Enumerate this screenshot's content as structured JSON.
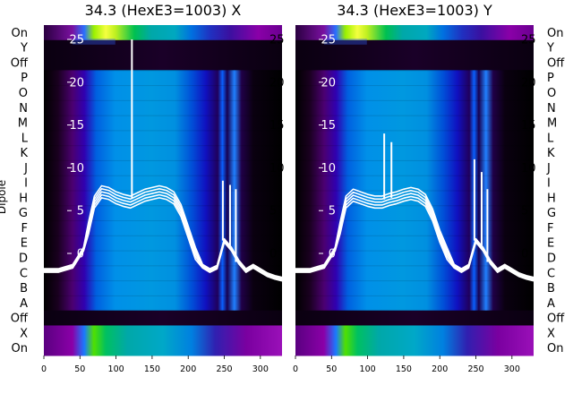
{
  "chart_data": [
    {
      "type": "heatmap",
      "title": "34.3 (HexE3=1003) X",
      "ylabel": "Dipole",
      "xlabel": "",
      "xlim": [
        0,
        330
      ],
      "x_ticks": [
        0,
        50,
        100,
        150,
        200,
        250,
        300
      ],
      "row_labels": [
        "On",
        "Y",
        "Off",
        "P",
        "O",
        "N",
        "M",
        "L",
        "K",
        "J",
        "I",
        "H",
        "G",
        "F",
        "E",
        "D",
        "C",
        "B",
        "A",
        "Off",
        "X",
        "On"
      ],
      "overlay_ylim": [
        -3,
        26
      ],
      "overlay_ticks": [
        0,
        5,
        10,
        15,
        20,
        25
      ],
      "colormap": [
        "#000000",
        "#4b0070",
        "#8a00a8",
        "#0000d8",
        "#0070e8",
        "#00a8c8",
        "#00c040",
        "#b8f000",
        "#ffff40"
      ],
      "overlay_color": "#ffffff",
      "series": [
        {
          "x": [
            0,
            20,
            40,
            55,
            62,
            70,
            80,
            90,
            100,
            110,
            120,
            130,
            140,
            150,
            160,
            170,
            180,
            190,
            200,
            210,
            220,
            230,
            240,
            250,
            260,
            270,
            280,
            290,
            300,
            310,
            320,
            330
          ],
          "y": [
            -2.0,
            -2.0,
            -1.5,
            0.5,
            3.0,
            6.0,
            7.2,
            7.0,
            6.5,
            6.2,
            6.0,
            6.4,
            6.8,
            7.0,
            7.2,
            7.0,
            6.5,
            5.0,
            2.5,
            0.0,
            -1.5,
            -2.0,
            -1.6,
            1.5,
            0.5,
            -1.0,
            -2.0,
            -1.5,
            -2.0,
            -2.5,
            -2.8,
            -3.0
          ]
        }
      ],
      "spikes": [
        {
          "x": 122,
          "y": 25.0
        },
        {
          "x": 248,
          "y": 8.5
        },
        {
          "x": 258,
          "y": 8.0
        },
        {
          "x": 266,
          "y": 7.5
        }
      ]
    },
    {
      "type": "heatmap",
      "title": "34.3 (HexE3=1003) Y",
      "ylabel": "",
      "xlabel": "",
      "xlim": [
        0,
        330
      ],
      "x_ticks": [
        0,
        50,
        100,
        150,
        200,
        250,
        300
      ],
      "row_labels": [
        "On",
        "Y",
        "Off",
        "P",
        "O",
        "N",
        "M",
        "L",
        "K",
        "J",
        "I",
        "H",
        "G",
        "F",
        "E",
        "D",
        "C",
        "B",
        "A",
        "Off",
        "X",
        "On"
      ],
      "overlay_ylim": [
        -3,
        26
      ],
      "overlay_ticks": [
        0,
        5,
        10,
        15,
        20,
        25
      ],
      "colormap": [
        "#000000",
        "#4b0070",
        "#8a00a8",
        "#0000d8",
        "#0070e8",
        "#00a8c8",
        "#00c040",
        "#b8f000",
        "#ffff40"
      ],
      "overlay_color": "#ffffff",
      "series": [
        {
          "x": [
            0,
            20,
            40,
            55,
            62,
            70,
            80,
            90,
            100,
            110,
            120,
            130,
            140,
            150,
            160,
            170,
            180,
            190,
            200,
            210,
            220,
            230,
            240,
            250,
            260,
            270,
            280,
            290,
            300,
            310,
            320,
            330
          ],
          "y": [
            -2.0,
            -2.0,
            -1.5,
            0.5,
            3.0,
            6.0,
            6.8,
            6.5,
            6.2,
            6.0,
            6.0,
            6.3,
            6.5,
            6.8,
            7.0,
            6.8,
            6.2,
            4.5,
            2.0,
            0.0,
            -1.5,
            -2.0,
            -1.5,
            1.5,
            0.5,
            -1.0,
            -2.0,
            -1.5,
            -2.0,
            -2.5,
            -2.8,
            -3.0
          ]
        }
      ],
      "spikes": [
        {
          "x": 123,
          "y": 14.0
        },
        {
          "x": 133,
          "y": 13.0
        },
        {
          "x": 248,
          "y": 11.0
        },
        {
          "x": 258,
          "y": 9.5
        },
        {
          "x": 266,
          "y": 7.5
        }
      ]
    }
  ]
}
